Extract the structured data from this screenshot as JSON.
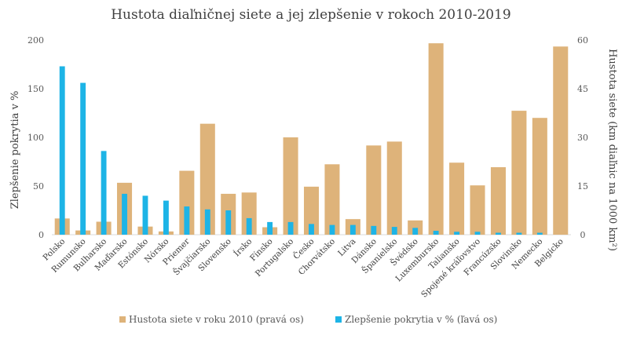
{
  "chart_data": {
    "type": "bar",
    "title": "Hustota diaľničnej siete a jej zlepšenie v rokoch 2010-2019",
    "ylabel_left": "Zlepšenie pokrytia v %",
    "ylabel_right": "Hustota siete (km diaľnic na 1000 km²)",
    "ylim_left": [
      0,
      200
    ],
    "ylim_right": [
      0,
      60
    ],
    "yticks_left": [
      "0",
      "50",
      "100",
      "150",
      "200"
    ],
    "yticks_right": [
      "0",
      "15",
      "30",
      "45",
      "60"
    ],
    "grid": false,
    "legend_position": "bottom",
    "categories": [
      "Polsko",
      "Rumunsko",
      "Bulharsko",
      "Maďarsko",
      "Estónsko",
      "Nórsko",
      "Priemer",
      "Švajčiarsko",
      "Slovensko",
      "Írsko",
      "Fínsko",
      "Portugalsko",
      "Česko",
      "Chorvátsko",
      "Litva",
      "Dánsko",
      "Španielsko",
      "Švédsko",
      "Luxembursko",
      "Taliansko",
      "Spojené kráľovstvo",
      "Francúzsko",
      "Slovinsko",
      "Nemecko",
      "Belgicko"
    ],
    "series": [
      {
        "name": "Hustota siete v roku 2010 (pravá os)",
        "axis": "right",
        "color": "#DEB37A",
        "values": [
          5.0,
          1.3,
          4.0,
          16.0,
          2.5,
          1.0,
          19.7,
          34.2,
          12.6,
          13.0,
          2.3,
          30.0,
          14.8,
          21.7,
          4.8,
          27.5,
          28.7,
          4.4,
          59.0,
          22.2,
          15.2,
          20.8,
          38.2,
          36.0,
          58.0
        ]
      },
      {
        "name": "Zlepšenie pokrytia v % (ľavá os)",
        "axis": "left",
        "color": "#1DB4E6",
        "values": [
          173,
          156,
          86,
          42,
          40,
          35,
          29,
          26,
          25,
          17,
          13,
          13,
          11,
          10,
          10,
          9,
          8,
          7,
          4,
          3,
          3,
          2,
          2,
          2,
          0
        ]
      }
    ]
  }
}
